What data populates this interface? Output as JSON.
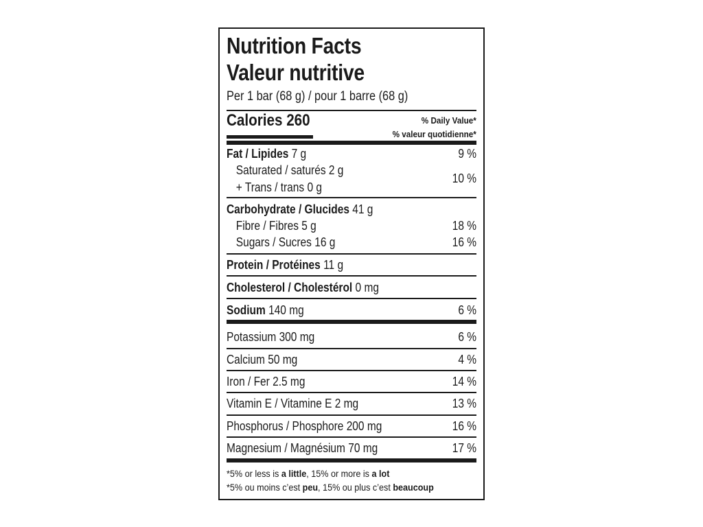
{
  "label": {
    "title_en": "Nutrition Facts",
    "title_fr": "Valeur nutritive",
    "serving": "Per 1 bar (68 g) / pour 1 barre (68 g)",
    "calories_label": "Calories",
    "calories_value": "260",
    "dv_header_en": "% Daily Value",
    "dv_header_fr": "% valeur quotidienne",
    "asterisk": "*",
    "fat": {
      "label": "Fat / Lipides",
      "amount": "7 g",
      "dv": "9 %"
    },
    "saturated": {
      "label": "Saturated / saturés",
      "amount": "2 g"
    },
    "trans": {
      "label": "+ Trans / trans",
      "amount": "0 g"
    },
    "sat_trans_dv": "10 %",
    "carbohydrate": {
      "label": "Carbohydrate / Glucides",
      "amount": "41 g"
    },
    "fibre": {
      "label": "Fibre / Fibres",
      "amount": "5 g",
      "dv": "18 %"
    },
    "sugars": {
      "label": "Sugars / Sucres",
      "amount": "16 g",
      "dv": "16 %"
    },
    "protein": {
      "label": "Protein / Protéines",
      "amount": "11 g"
    },
    "cholesterol": {
      "label": "Cholesterol / Cholestérol",
      "amount": "0 mg"
    },
    "sodium": {
      "label": "Sodium",
      "amount": "140 mg",
      "dv": "6 %"
    },
    "minerals": [
      {
        "label": "Potassium 300 mg",
        "dv": "6 %"
      },
      {
        "label": "Calcium 50 mg",
        "dv": "4 %"
      },
      {
        "label": "Iron / Fer 2.5 mg",
        "dv": "14 %"
      },
      {
        "label": "Vitamin E / Vitamine E 2 mg",
        "dv": "13 %"
      },
      {
        "label": "Phosphorus / Phosphore 200 mg",
        "dv": "16 %"
      },
      {
        "label": "Magnesium / Magnésium 70 mg",
        "dv": "17 %"
      }
    ],
    "footnote_en": {
      "a": "*5% or less is ",
      "b": "a little",
      "c": ", 15% or more is ",
      "d": "a lot"
    },
    "footnote_fr": {
      "a": "*5% ou moins c’est ",
      "b": "peu",
      "c": ", 15% ou plus c’est ",
      "d": "beaucoup"
    }
  }
}
